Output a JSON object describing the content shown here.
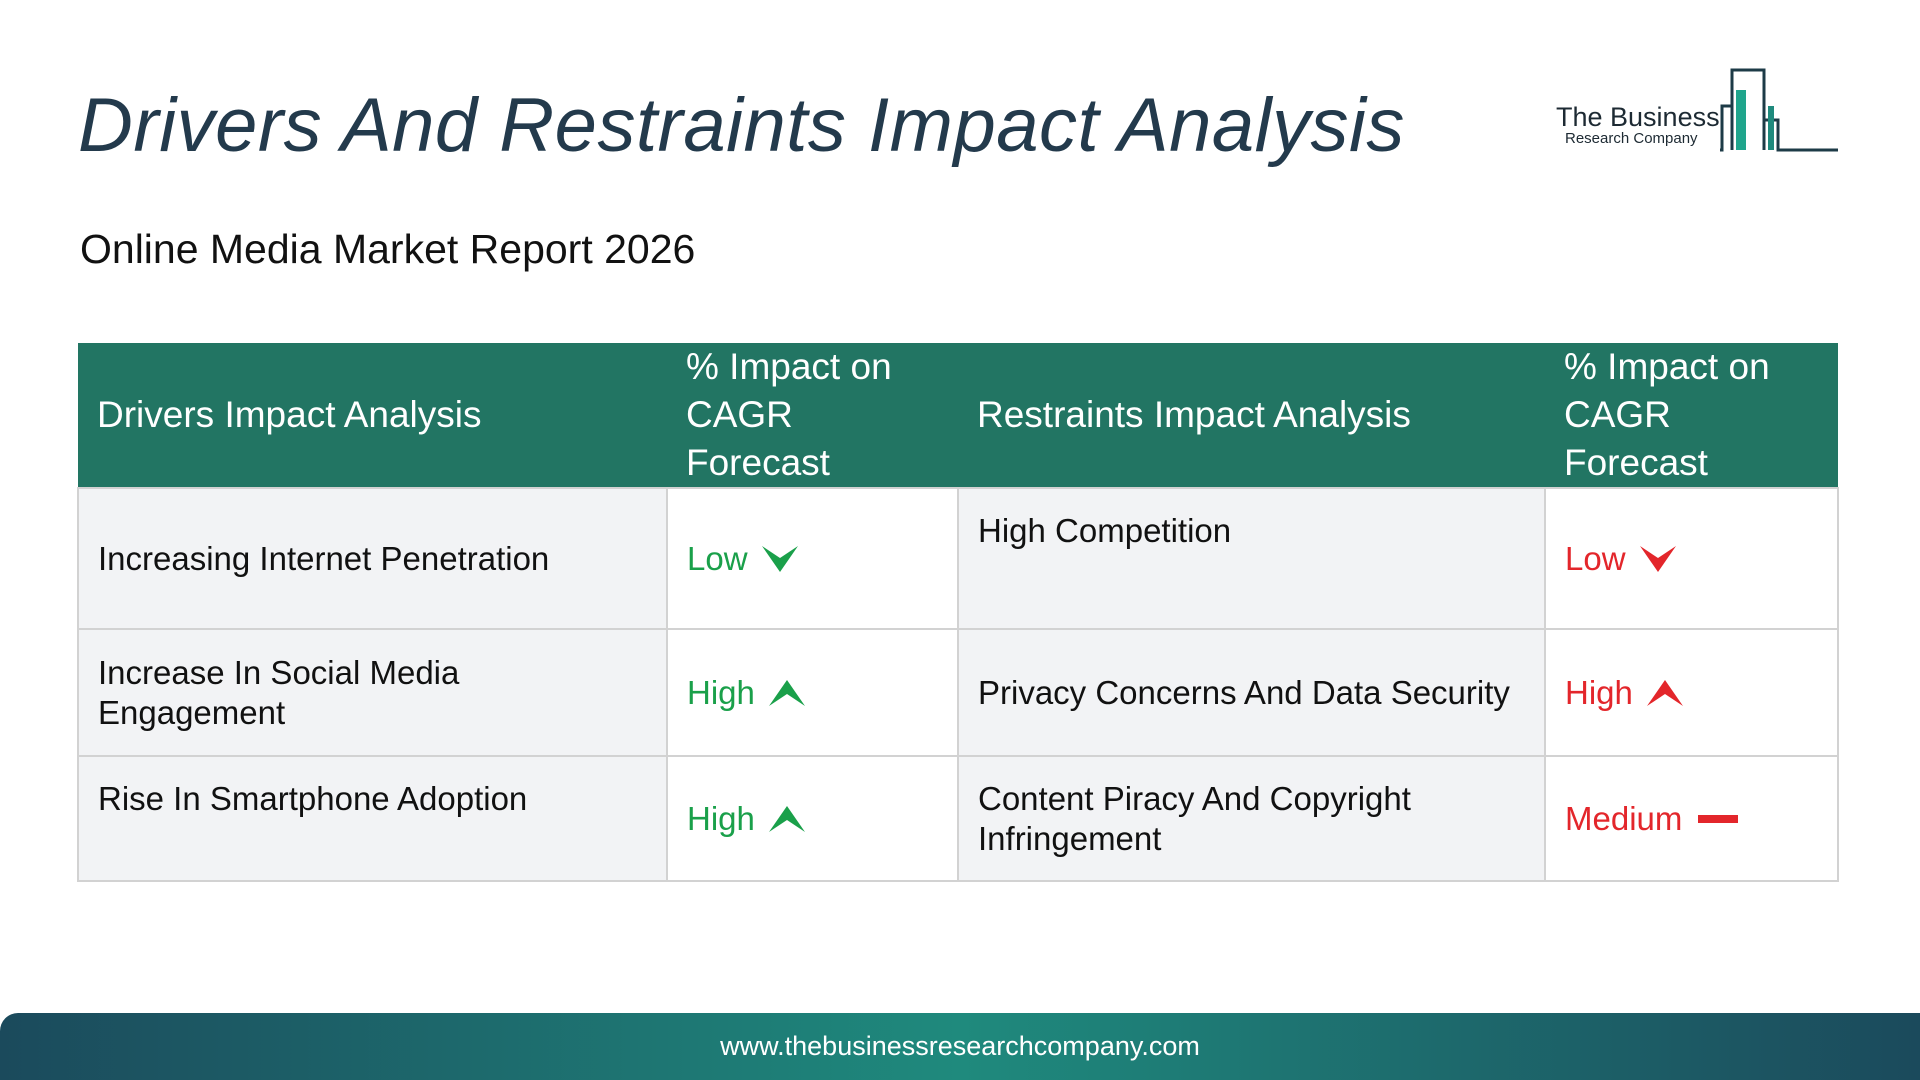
{
  "header": {
    "title": "Drivers And Restraints Impact Analysis",
    "subtitle": "Online Media Market Report 2026"
  },
  "logo": {
    "name": "The Business",
    "sub": "Research Company",
    "icon": "bar-building-icon",
    "color": "#1f8a7d"
  },
  "table": {
    "headers": {
      "drivers": "Drivers Impact Analysis",
      "drivers_impact": "% Impact on CAGR Forecast",
      "restraints": "Restraints Impact Analysis",
      "restraints_impact": "% Impact on CAGR Forecast"
    },
    "rows": [
      {
        "driver": "Increasing Internet Penetration",
        "driver_impact": "Low",
        "driver_icon": "chevron-down-icon",
        "restraint": "High Competition",
        "restraint_impact": "Low",
        "restraint_icon": "chevron-down-icon"
      },
      {
        "driver": "Increase In Social Media Engagement",
        "driver_impact": "High",
        "driver_icon": "chevron-up-icon",
        "restraint": "Privacy Concerns And Data Security",
        "restraint_impact": "High",
        "restraint_icon": "chevron-up-icon"
      },
      {
        "driver": "Rise In Smartphone Adoption",
        "driver_impact": "High",
        "driver_icon": "chevron-up-icon",
        "restraint": "Content Piracy And Copyright Infringement",
        "restraint_impact": "Medium",
        "restraint_icon": "dash-icon"
      }
    ],
    "colors": {
      "header_bg": "#227563",
      "driver_impact": "#1aa04a",
      "restraint_impact": "#e3262b"
    }
  },
  "footer": {
    "url": "www.thebusinessresearchcompany.com"
  }
}
